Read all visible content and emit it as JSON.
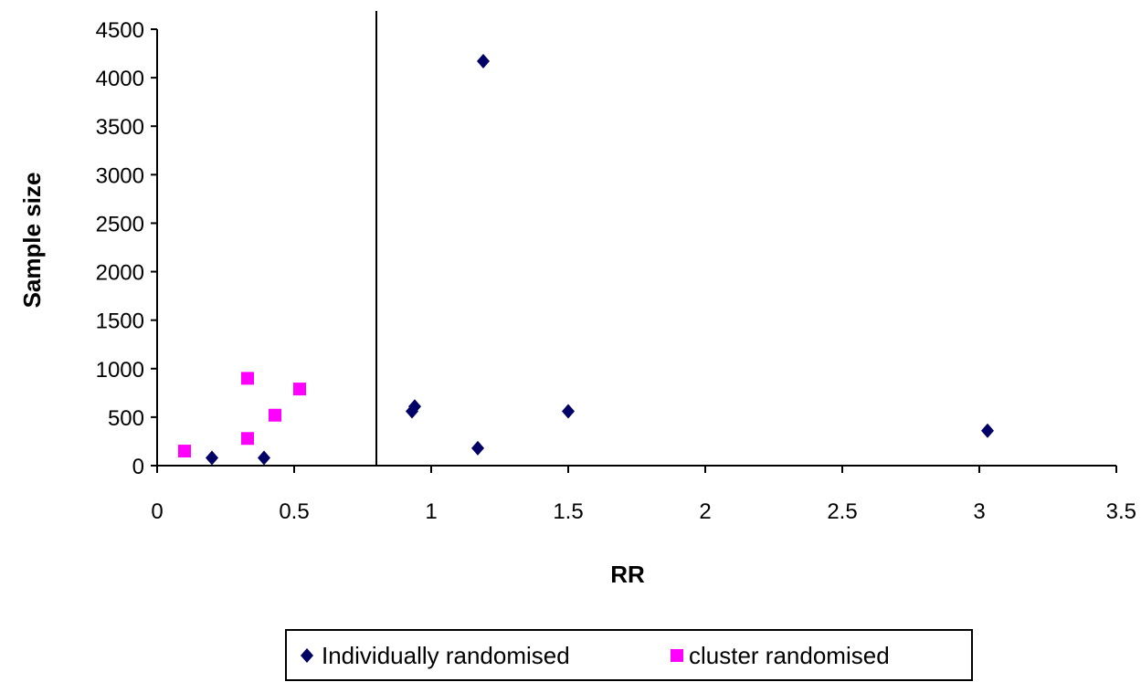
{
  "chart_data": {
    "type": "scatter",
    "xlabel": "RR",
    "ylabel": "Sample size",
    "xlim": [
      0,
      3.5
    ],
    "ylim": [
      0,
      4500
    ],
    "xticks": [
      "0",
      "0.5",
      "1",
      "1.5",
      "2",
      "2.5",
      "3",
      "3.5"
    ],
    "yticks": [
      "0",
      "500",
      "1000",
      "1500",
      "2000",
      "2500",
      "3000",
      "3500",
      "4000",
      "4500"
    ],
    "grid": false,
    "legend_position": "bottom",
    "reference_line_x": 0.8,
    "series": [
      {
        "name": "Individually randomised",
        "marker": "diamond",
        "color": "#000066",
        "points": [
          {
            "x": 0.2,
            "y": 80
          },
          {
            "x": 0.39,
            "y": 80
          },
          {
            "x": 0.93,
            "y": 560
          },
          {
            "x": 0.94,
            "y": 610
          },
          {
            "x": 1.17,
            "y": 180
          },
          {
            "x": 1.19,
            "y": 4170
          },
          {
            "x": 1.5,
            "y": 560
          },
          {
            "x": 3.03,
            "y": 360
          }
        ]
      },
      {
        "name": "cluster randomised",
        "marker": "square",
        "color": "#ff00ff",
        "points": [
          {
            "x": 0.1,
            "y": 150
          },
          {
            "x": 0.33,
            "y": 900
          },
          {
            "x": 0.33,
            "y": 280
          },
          {
            "x": 0.43,
            "y": 520
          },
          {
            "x": 0.52,
            "y": 790
          }
        ]
      }
    ]
  }
}
